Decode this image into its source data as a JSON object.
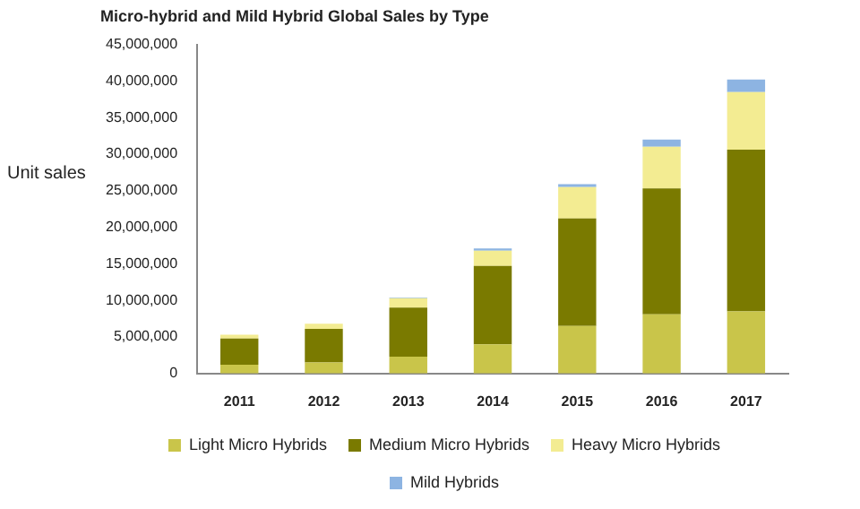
{
  "chart_data": {
    "type": "bar",
    "title": "Micro-hybrid and Mild Hybrid Global Sales by Type",
    "ylabel": "Unit sales",
    "categories": [
      "2011",
      "2012",
      "2013",
      "2014",
      "2015",
      "2016",
      "2017"
    ],
    "stacked": true,
    "series": [
      {
        "name": "Light Micro Hybrids",
        "color": "#c9c54a",
        "values": [
          1200000,
          1500000,
          2300000,
          4000000,
          6500000,
          8100000,
          8500000
        ]
      },
      {
        "name": "Medium Micro Hybrids",
        "color": "#7a7a00",
        "values": [
          3600000,
          4600000,
          6700000,
          10700000,
          14700000,
          17200000,
          22100000
        ]
      },
      {
        "name": "Heavy Micro Hybrids",
        "color": "#f3ec92",
        "values": [
          500000,
          700000,
          1300000,
          2100000,
          4300000,
          5700000,
          7900000
        ]
      },
      {
        "name": "Mild Hybrids",
        "color": "#8db4e2",
        "values": [
          null,
          null,
          100000,
          300000,
          400000,
          1000000,
          1700000
        ]
      }
    ],
    "ylim": [
      0,
      45000000
    ],
    "yticks": [
      0,
      {
        "value": 5000000,
        "label": "5,000,000"
      },
      {
        "value": 10000000,
        "label": "10,000,000"
      },
      {
        "value": 15000000,
        "label": "15,000,000"
      },
      {
        "value": 20000000,
        "label": "20,000,000"
      },
      {
        "value": 25000000,
        "label": "25,000,000"
      },
      {
        "value": 30000000,
        "label": "30,000,000"
      },
      {
        "value": 35000000,
        "label": "35,000,000"
      },
      {
        "value": 40000000,
        "label": "40,000,000"
      },
      {
        "value": 45000000,
        "label": "45,000,000"
      }
    ],
    "grid": false,
    "legend": "bottom"
  }
}
